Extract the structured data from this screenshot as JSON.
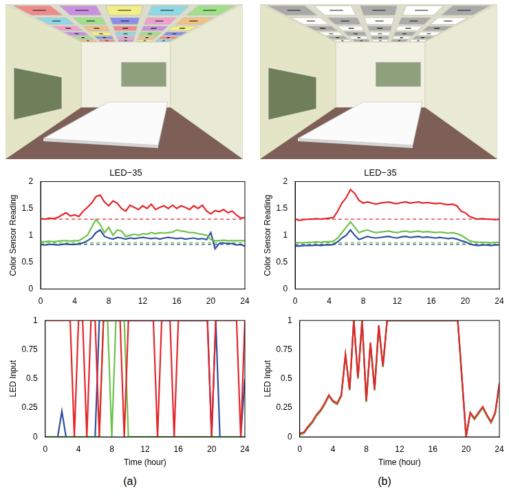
{
  "panel_labels": [
    "(a)",
    "(b)"
  ],
  "chart_data": [
    {
      "type": "line",
      "title": "LED−35",
      "y_label": "Color Sensor Reading",
      "x": [
        0,
        0.5,
        1,
        1.5,
        2,
        2.5,
        3,
        3.5,
        4,
        4.5,
        5,
        5.5,
        6,
        6.5,
        7,
        7.5,
        8,
        8.5,
        9,
        9.5,
        10,
        10.5,
        11,
        11.5,
        12,
        12.5,
        13,
        13.5,
        14,
        14.5,
        15,
        15.5,
        16,
        16.5,
        17,
        17.5,
        18,
        18.5,
        19,
        19.5,
        20,
        20.5,
        21,
        21.5,
        22,
        22.5,
        23,
        23.5,
        24
      ],
      "series": [
        {
          "color": "#e5252a",
          "values": [
            1.31,
            1.3,
            1.32,
            1.31,
            1.33,
            1.38,
            1.42,
            1.36,
            1.38,
            1.35,
            1.45,
            1.52,
            1.6,
            1.72,
            1.75,
            1.62,
            1.55,
            1.64,
            1.6,
            1.5,
            1.45,
            1.56,
            1.52,
            1.48,
            1.55,
            1.5,
            1.58,
            1.48,
            1.52,
            1.55,
            1.5,
            1.56,
            1.5,
            1.55,
            1.52,
            1.48,
            1.55,
            1.5,
            1.56,
            1.45,
            1.4,
            1.46,
            1.44,
            1.48,
            1.42,
            1.45,
            1.38,
            1.32,
            1.33
          ]
        },
        {
          "color": "#6cc24a",
          "values": [
            0.88,
            0.88,
            0.89,
            0.88,
            0.89,
            0.9,
            0.9,
            0.89,
            0.9,
            0.9,
            0.95,
            1.0,
            1.15,
            1.3,
            1.2,
            1.05,
            1.15,
            1.0,
            1.1,
            1.08,
            0.98,
            1.0,
            1.02,
            1.0,
            1.03,
            1.02,
            1.05,
            1.03,
            1.05,
            1.04,
            1.05,
            1.06,
            1.1,
            1.08,
            1.07,
            1.05,
            1.05,
            1.03,
            1.02,
            1.0,
            0.92,
            0.9,
            0.9,
            0.91,
            0.9,
            0.9,
            0.9,
            0.9,
            0.9
          ]
        },
        {
          "color": "#2e4f9f",
          "values": [
            0.83,
            0.82,
            0.83,
            0.83,
            0.82,
            0.83,
            0.84,
            0.83,
            0.83,
            0.84,
            0.86,
            0.9,
            0.95,
            1.05,
            1.1,
            0.98,
            0.95,
            0.93,
            0.96,
            0.95,
            0.93,
            0.95,
            0.94,
            0.95,
            0.96,
            0.95,
            0.94,
            0.95,
            0.93,
            0.95,
            0.96,
            0.95,
            0.94,
            0.95,
            0.93,
            0.94,
            0.95,
            0.93,
            0.94,
            0.92,
            1.05,
            0.75,
            0.85,
            0.86,
            0.84,
            0.85,
            0.82,
            0.83,
            0.8
          ]
        },
        {
          "color": "#e5252a",
          "line_style": "dashed",
          "x": [
            0,
            24
          ],
          "values": [
            1.3,
            1.3
          ]
        },
        {
          "color": "#6cc24a",
          "line_style": "dashed",
          "x": [
            0,
            24
          ],
          "values": [
            0.86,
            0.86
          ]
        },
        {
          "color": "#2e4f9f",
          "line_style": "dashed",
          "x": [
            0,
            24
          ],
          "values": [
            0.83,
            0.83
          ]
        }
      ],
      "xlim": [
        0,
        24
      ],
      "xticks": [
        0,
        4,
        8,
        12,
        16,
        20,
        24
      ],
      "ylim": [
        0,
        2
      ],
      "yticks": [
        0,
        0.5,
        1,
        1.5,
        2
      ],
      "grid": false
    },
    {
      "type": "line",
      "y_label": "LED Input",
      "x_label": "Time (hour)",
      "x": [
        0,
        0.5,
        1,
        1.5,
        2,
        2.5,
        3,
        3.5,
        4,
        4.5,
        5,
        5.5,
        6,
        6.5,
        7,
        7.5,
        8,
        8.5,
        9,
        9.5,
        10,
        10.5,
        11,
        11.5,
        12,
        12.5,
        13,
        13.5,
        14,
        14.5,
        15,
        15.5,
        16,
        16.5,
        17,
        17.5,
        18,
        18.5,
        19,
        19.5,
        20,
        20.5,
        21,
        21.5,
        22,
        22.5,
        23,
        23.5,
        24
      ],
      "series": [
        {
          "color": "#e5252a",
          "values": [
            1,
            1,
            1,
            1,
            1,
            1,
            1,
            0,
            1,
            1,
            0,
            1,
            1,
            0,
            1,
            1,
            1,
            1,
            1,
            0,
            1,
            1,
            1,
            1,
            1,
            1,
            1,
            0,
            1,
            1,
            1,
            0,
            1,
            1,
            1,
            1,
            1,
            1,
            1,
            1,
            0,
            1,
            1,
            1,
            1,
            1,
            1,
            0,
            1
          ]
        },
        {
          "color": "#6cc24a",
          "values": [
            0,
            0,
            0,
            0,
            0,
            0,
            0,
            0,
            0,
            0,
            0,
            0,
            0,
            0,
            1,
            1,
            0,
            1,
            1,
            1,
            0,
            0,
            0,
            0,
            0,
            0,
            0,
            0,
            0,
            0,
            0,
            0,
            0,
            0,
            0,
            0,
            0,
            0,
            0,
            0,
            0,
            0,
            0,
            0,
            0,
            0,
            0,
            0,
            0
          ]
        },
        {
          "color": "#2e4f9f",
          "values": [
            0,
            0,
            0,
            0,
            0.22,
            0,
            0,
            0,
            0,
            0,
            0,
            0,
            0,
            1,
            1,
            1,
            1,
            1,
            1,
            1,
            1,
            1,
            1,
            1,
            1,
            1,
            1,
            1,
            1,
            1,
            1,
            1,
            1,
            1,
            1,
            1,
            1,
            1,
            1,
            1,
            0,
            1,
            0,
            0,
            0,
            0,
            0,
            0,
            0.5
          ]
        }
      ],
      "xlim": [
        0,
        24
      ],
      "xticks": [
        0,
        4,
        8,
        12,
        16,
        20,
        24
      ],
      "ylim": [
        0,
        1
      ],
      "yticks": [
        0,
        0.25,
        0.5,
        0.75,
        1
      ],
      "grid": false
    },
    {
      "type": "line",
      "title": "LED−35",
      "y_label": "Color Sensor Reading",
      "x": [
        0,
        0.5,
        1,
        1.5,
        2,
        2.5,
        3,
        3.5,
        4,
        4.5,
        5,
        5.5,
        6,
        6.5,
        7,
        7.5,
        8,
        8.5,
        9,
        9.5,
        10,
        10.5,
        11,
        11.5,
        12,
        12.5,
        13,
        13.5,
        14,
        14.5,
        15,
        15.5,
        16,
        16.5,
        17,
        17.5,
        18,
        18.5,
        19,
        19.5,
        20,
        20.5,
        21,
        21.5,
        22,
        22.5,
        23,
        23.5,
        24
      ],
      "series": [
        {
          "color": "#e5252a",
          "values": [
            1.3,
            1.28,
            1.29,
            1.3,
            1.3,
            1.31,
            1.3,
            1.31,
            1.32,
            1.33,
            1.45,
            1.6,
            1.7,
            1.85,
            1.78,
            1.65,
            1.6,
            1.62,
            1.6,
            1.58,
            1.6,
            1.61,
            1.62,
            1.6,
            1.59,
            1.61,
            1.62,
            1.6,
            1.61,
            1.62,
            1.6,
            1.61,
            1.6,
            1.59,
            1.6,
            1.58,
            1.57,
            1.58,
            1.55,
            1.45,
            1.42,
            1.35,
            1.32,
            1.3,
            1.31,
            1.3,
            1.3,
            1.29,
            1.3
          ]
        },
        {
          "color": "#6cc24a",
          "values": [
            0.87,
            0.86,
            0.86,
            0.87,
            0.87,
            0.88,
            0.87,
            0.88,
            0.88,
            0.89,
            0.95,
            1.05,
            1.15,
            1.25,
            1.15,
            1.05,
            1.08,
            1.1,
            1.07,
            1.05,
            1.06,
            1.07,
            1.08,
            1.06,
            1.05,
            1.07,
            1.08,
            1.06,
            1.07,
            1.08,
            1.06,
            1.07,
            1.06,
            1.05,
            1.06,
            1.05,
            1.04,
            1.05,
            1.03,
            1.0,
            0.95,
            0.9,
            0.88,
            0.87,
            0.87,
            0.87,
            0.86,
            0.87,
            0.87
          ]
        },
        {
          "color": "#2e4f9f",
          "values": [
            0.8,
            0.8,
            0.81,
            0.81,
            0.81,
            0.82,
            0.81,
            0.82,
            0.82,
            0.83,
            0.88,
            0.95,
            1.0,
            1.1,
            1.0,
            0.92,
            0.95,
            0.98,
            0.96,
            0.95,
            0.96,
            0.97,
            0.98,
            0.96,
            0.95,
            0.97,
            0.98,
            0.96,
            0.97,
            0.98,
            0.96,
            0.97,
            0.96,
            0.95,
            0.96,
            0.95,
            0.94,
            0.95,
            0.93,
            0.9,
            0.88,
            0.84,
            0.82,
            0.81,
            0.82,
            0.82,
            0.81,
            0.82,
            0.82
          ]
        },
        {
          "color": "#e5252a",
          "line_style": "dashed",
          "x": [
            0,
            24
          ],
          "values": [
            1.3,
            1.3
          ]
        },
        {
          "color": "#6cc24a",
          "line_style": "dashed",
          "x": [
            0,
            24
          ],
          "values": [
            0.86,
            0.86
          ]
        },
        {
          "color": "#2e4f9f",
          "line_style": "dashed",
          "x": [
            0,
            24
          ],
          "values": [
            0.83,
            0.83
          ]
        }
      ],
      "xlim": [
        0,
        24
      ],
      "xticks": [
        0,
        4,
        8,
        12,
        16,
        20,
        24
      ],
      "ylim": [
        0,
        2
      ],
      "yticks": [
        0,
        0.5,
        1,
        1.5,
        2
      ],
      "grid": false
    },
    {
      "type": "line",
      "y_label": "LED Input",
      "x_label": "Time (hour)",
      "x": [
        0,
        0.5,
        1,
        1.5,
        2,
        2.5,
        3,
        3.5,
        4,
        4.5,
        5,
        5.5,
        6,
        6.5,
        7,
        7.5,
        8,
        8.5,
        9,
        9.5,
        10,
        10.5,
        11,
        11.5,
        12,
        12.5,
        13,
        13.5,
        14,
        14.5,
        15,
        15.5,
        16,
        16.5,
        17,
        17.5,
        18,
        18.5,
        19,
        19.5,
        20,
        20.5,
        21,
        21.5,
        22,
        22.5,
        23,
        23.5,
        24
      ],
      "series": [
        {
          "color": "#e5252a",
          "values": [
            0.03,
            0.04,
            0.09,
            0.13,
            0.19,
            0.23,
            0.29,
            0.36,
            0.31,
            0.29,
            0.36,
            0.71,
            0.41,
            1,
            0.51,
            1,
            0.31,
            0.81,
            0.41,
            0.96,
            0.61,
            1,
            1,
            1,
            1,
            1,
            1,
            1,
            1,
            1,
            1,
            1,
            1,
            1,
            1,
            1,
            1,
            1,
            1,
            0.51,
            0.01,
            0.21,
            0.16,
            0.21,
            0.26,
            0.19,
            0.13,
            0.21,
            0.46
          ]
        },
        {
          "color": "#6cc24a",
          "values": [
            0.02,
            0.03,
            0.08,
            0.12,
            0.18,
            0.22,
            0.28,
            0.35,
            0.3,
            0.28,
            0.35,
            0.7,
            0.4,
            1,
            0.5,
            1,
            0.3,
            0.8,
            0.4,
            0.95,
            0.6,
            1,
            1,
            1,
            1,
            1,
            1,
            1,
            1,
            1,
            1,
            1,
            1,
            1,
            1,
            1,
            1,
            1,
            1,
            0.5,
            0,
            0.2,
            0.15,
            0.2,
            0.25,
            0.18,
            0.12,
            0.2,
            0.45
          ]
        },
        {
          "color": "#2e4f9f",
          "values": [
            0.02,
            0.03,
            0.08,
            0.12,
            0.18,
            0.22,
            0.28,
            0.35,
            0.3,
            0.28,
            0.35,
            0.7,
            0.4,
            1,
            0.5,
            1,
            0.3,
            0.8,
            0.4,
            0.95,
            0.6,
            1,
            1,
            1,
            1,
            1,
            1,
            1,
            1,
            1,
            1,
            1,
            1,
            1,
            1,
            1,
            1,
            1,
            1,
            0.5,
            0,
            0.2,
            0.15,
            0.2,
            0.25,
            0.18,
            0.12,
            0.2,
            0.45
          ]
        }
      ],
      "xlim": [
        0,
        24
      ],
      "xticks": [
        0,
        4,
        8,
        12,
        16,
        20,
        24
      ],
      "ylim": [
        0,
        1
      ],
      "yticks": [
        0,
        0.25,
        0.5,
        0.75,
        1
      ],
      "grid": false
    }
  ]
}
